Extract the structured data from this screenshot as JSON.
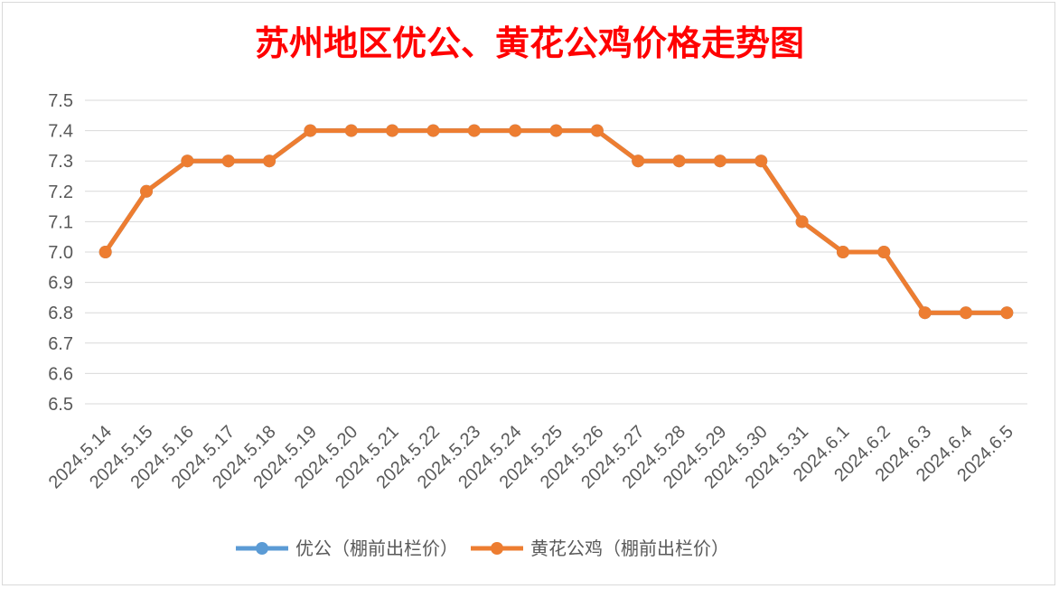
{
  "chart_data": {
    "type": "line",
    "title": "苏州地区优公、黄花公鸡价格走势图",
    "title_color": "#ff0000",
    "xlabel": "",
    "ylabel": "",
    "ylim": [
      6.5,
      7.5
    ],
    "ytick_step": 0.1,
    "ytick_decimals": 1,
    "grid": true,
    "legend_position": "bottom",
    "categories": [
      "2024.5.14",
      "2024.5.15",
      "2024.5.16",
      "2024.5.17",
      "2024.5.18",
      "2024.5.19",
      "2024.5.20",
      "2024.5.21",
      "2024.5.22",
      "2024.5.23",
      "2024.5.24",
      "2024.5.25",
      "2024.5.26",
      "2024.5.27",
      "2024.5.28",
      "2024.5.29",
      "2024.5.30",
      "2024.5.31",
      "2024.6.1",
      "2024.6.2",
      "2024.6.3",
      "2024.6.4",
      "2024.6.5"
    ],
    "series": [
      {
        "name": "优公（棚前出栏价）",
        "color": "#5b9bd5",
        "values": [
          7.0,
          7.2,
          7.3,
          7.3,
          7.3,
          7.4,
          7.4,
          7.4,
          7.4,
          7.4,
          7.4,
          7.4,
          7.4,
          7.3,
          7.3,
          7.3,
          7.3,
          7.1,
          7.0,
          7.0,
          6.8,
          6.8,
          6.8
        ]
      },
      {
        "name": "黄花公鸡（棚前出栏价）",
        "color": "#ed7d31",
        "values": [
          7.0,
          7.2,
          7.3,
          7.3,
          7.3,
          7.4,
          7.4,
          7.4,
          7.4,
          7.4,
          7.4,
          7.4,
          7.4,
          7.3,
          7.3,
          7.3,
          7.3,
          7.1,
          7.0,
          7.0,
          6.8,
          6.8,
          6.8
        ]
      }
    ]
  }
}
